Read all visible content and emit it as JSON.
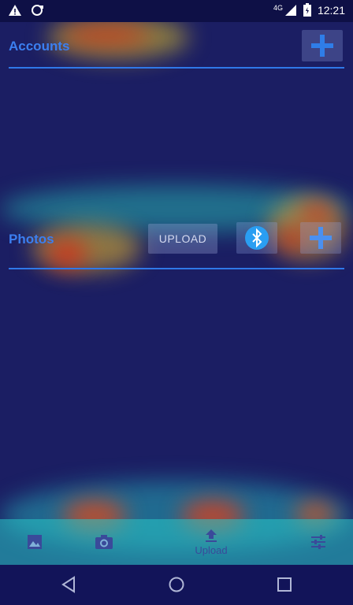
{
  "status_bar": {
    "time": "12:21",
    "network": "4G",
    "icons": [
      "warning-icon",
      "sync-icon",
      "signal-icon",
      "battery-icon"
    ]
  },
  "accounts": {
    "title": "Accounts",
    "add_icon": "plus-icon"
  },
  "photos": {
    "title": "Photos",
    "upload_label": "UPLOAD",
    "bluetooth_icon": "bluetooth-icon",
    "add_icon": "plus-icon"
  },
  "bottom_nav": {
    "items": [
      {
        "icon": "image-icon",
        "label": ""
      },
      {
        "icon": "camera-icon",
        "label": ""
      },
      {
        "icon": "upload-icon",
        "label": "Upload"
      },
      {
        "icon": "settings-sliders-icon",
        "label": ""
      }
    ]
  },
  "system_nav": [
    "back-icon",
    "home-icon",
    "recents-icon"
  ],
  "colors": {
    "background": "#1b1e63",
    "accent": "#3b7ff0",
    "bottom_nav": "#28c8c8"
  }
}
